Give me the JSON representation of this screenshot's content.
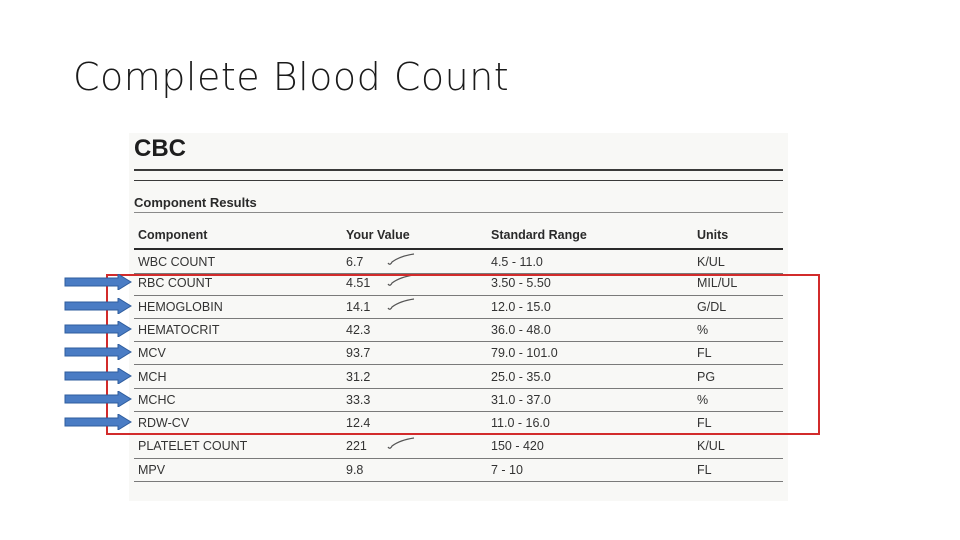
{
  "slide": {
    "title": "Complete Blood Count"
  },
  "report": {
    "heading": "CBC",
    "section": "Component Results",
    "columns": {
      "component": "Component",
      "value": "Your Value",
      "range": "Standard Range",
      "units": "Units"
    },
    "rows": [
      {
        "component": "WBC COUNT",
        "value": "6.7",
        "range": "4.5 - 11.0",
        "units": "K/UL",
        "checked": true,
        "highlighted": false
      },
      {
        "component": "RBC COUNT",
        "value": "4.51",
        "range": "3.50 - 5.50",
        "units": "MIL/UL",
        "checked": true,
        "highlighted": true
      },
      {
        "component": "HEMOGLOBIN",
        "value": "14.1",
        "range": "12.0 - 15.0",
        "units": "G/DL",
        "checked": true,
        "highlighted": true
      },
      {
        "component": "HEMATOCRIT",
        "value": "42.3",
        "range": "36.0 - 48.0",
        "units": "%",
        "checked": false,
        "highlighted": true
      },
      {
        "component": "MCV",
        "value": "93.7",
        "range": "79.0 - 101.0",
        "units": "FL",
        "checked": false,
        "highlighted": true
      },
      {
        "component": "MCH",
        "value": "31.2",
        "range": "25.0 - 35.0",
        "units": "PG",
        "checked": false,
        "highlighted": true
      },
      {
        "component": "MCHC",
        "value": "33.3",
        "range": "31.0 - 37.0",
        "units": "%",
        "checked": false,
        "highlighted": true
      },
      {
        "component": "RDW-CV",
        "value": "12.4",
        "range": "11.0 - 16.0",
        "units": "FL",
        "checked": false,
        "highlighted": true
      },
      {
        "component": "PLATELET COUNT",
        "value": "221",
        "range": "150 - 420",
        "units": "K/UL",
        "checked": true,
        "highlighted": false
      },
      {
        "component": "MPV",
        "value": "9.8",
        "range": "7 - 10",
        "units": "FL",
        "checked": false,
        "highlighted": false
      }
    ]
  },
  "annotations": {
    "highlight_color": "#d22b2b",
    "arrow_color": "#4a7cc4",
    "arrow_count": 7
  }
}
